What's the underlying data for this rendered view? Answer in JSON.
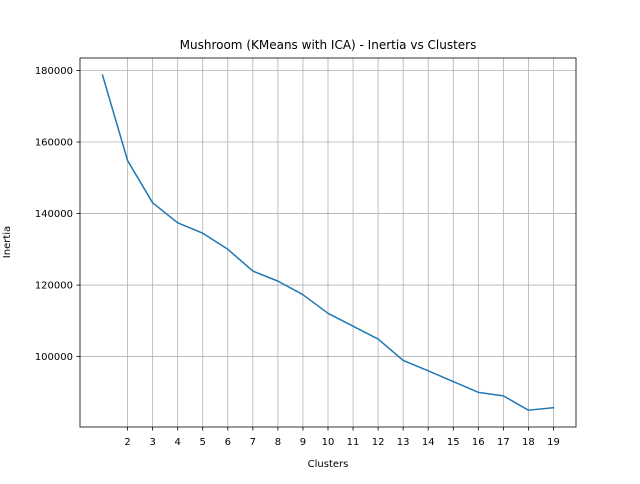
{
  "chart_data": {
    "type": "line",
    "title": "Mushroom (KMeans with ICA) - Inertia vs Clusters",
    "xlabel": "Clusters",
    "ylabel": "Inertia",
    "x": [
      1,
      2,
      3,
      4,
      5,
      6,
      7,
      8,
      9,
      10,
      11,
      12,
      13,
      14,
      15,
      16,
      17,
      18,
      19
    ],
    "x_ticks": [
      2,
      3,
      4,
      5,
      6,
      7,
      8,
      9,
      10,
      11,
      12,
      13,
      14,
      15,
      16,
      17,
      18,
      19
    ],
    "xlim": [
      0.1,
      19.9
    ],
    "y_ticks": [
      100000,
      120000,
      140000,
      160000,
      180000
    ],
    "ylim": [
      80300,
      183500
    ],
    "grid": true,
    "series": [
      {
        "color": "#1f77b4",
        "values": [
          178700,
          154800,
          143000,
          137400,
          134500,
          130000,
          123900,
          121100,
          117300,
          112100,
          108500,
          104900,
          98900,
          96000,
          93000,
          90000,
          89000,
          85000,
          85700
        ]
      }
    ]
  }
}
